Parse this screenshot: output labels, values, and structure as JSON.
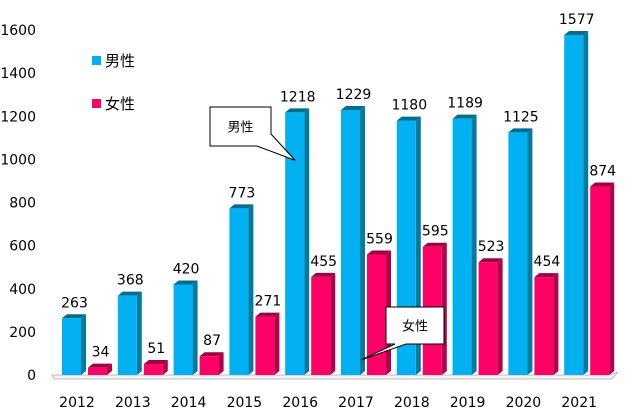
{
  "chart_data": {
    "type": "bar",
    "categories": [
      "2012",
      "2013",
      "2014",
      "2015",
      "2016",
      "2017",
      "2018",
      "2019",
      "2020",
      "2021"
    ],
    "series": [
      {
        "name": "男性",
        "color": "#00B0F0",
        "side_color": "#007A9E",
        "top_color": "#006C8E",
        "values": [
          263,
          368,
          420,
          773,
          1218,
          1229,
          1180,
          1189,
          1125,
          1577
        ]
      },
      {
        "name": "女性",
        "color": "#FF0066",
        "side_color": "#B30048",
        "top_color": "#A0003F",
        "values": [
          34,
          51,
          87,
          271,
          455,
          559,
          595,
          523,
          454,
          874
        ]
      }
    ],
    "ylim": [
      0,
      1600
    ],
    "yticks": [
      0,
      200,
      400,
      600,
      800,
      1000,
      1200,
      1400,
      1600
    ],
    "legend_position": "top-left",
    "grid": false,
    "callouts": [
      {
        "text": "男性",
        "series": "男性",
        "category": "2016"
      },
      {
        "text": "女性",
        "series": "女性",
        "category": "2017"
      }
    ]
  }
}
